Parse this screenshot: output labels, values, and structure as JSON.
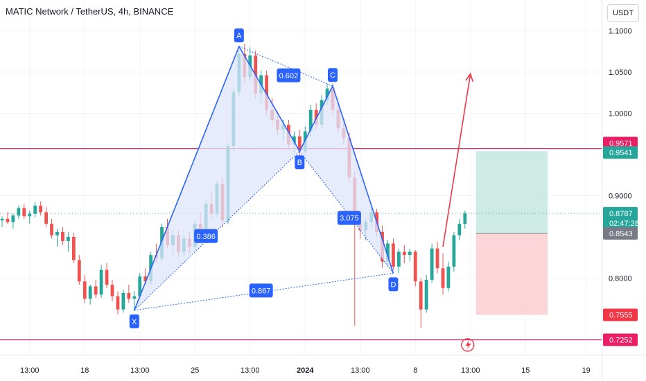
{
  "header": {
    "title": "MATIC Network / TetherUS, 4h, BINANCE",
    "unit": "USDT"
  },
  "colors": {
    "up": "#26a69a",
    "down": "#ef5350",
    "pattern": "#2962ff",
    "pattern_fill": "#dfe6fb",
    "level_line": "#e91e63",
    "current_line": "#26a69a",
    "profit_zone": "#cdebe4",
    "loss_zone": "#fbd5d7",
    "arrow": "#f23645"
  },
  "chart_data": {
    "type": "candlestick",
    "symbol": "MATIC Network / TetherUS",
    "timeframe": "4h",
    "exchange": "BINANCE",
    "ylim": [
      0.7,
      1.125
    ],
    "x_ticks": [
      {
        "i": 5,
        "label": "13:00"
      },
      {
        "i": 15,
        "label": "18"
      },
      {
        "i": 25,
        "label": "13:00"
      },
      {
        "i": 35,
        "label": "25"
      },
      {
        "i": 45,
        "label": "13:00"
      },
      {
        "i": 55,
        "label": "2024"
      },
      {
        "i": 65,
        "label": "13:00"
      },
      {
        "i": 75,
        "label": "8"
      },
      {
        "i": 85,
        "label": "13:00"
      },
      {
        "i": 95,
        "label": "15"
      },
      {
        "i": 106,
        "label": "19"
      }
    ],
    "y_ticks": [
      {
        "v": 1.1,
        "label": "1.1000"
      },
      {
        "v": 1.05,
        "label": "1.0500"
      },
      {
        "v": 1.0,
        "label": "1.0000"
      },
      {
        "v": 0.9,
        "label": "0.9000"
      },
      {
        "v": 0.8,
        "label": "0.8000"
      }
    ],
    "price_labels": [
      {
        "v": 0.9571,
        "label": "0.9571",
        "color": "#e91e63"
      },
      {
        "v": 0.9541,
        "label": "0.9541",
        "color": "#26a69a"
      },
      {
        "v": 0.8787,
        "label": "0.8787",
        "sub": "02:47:28",
        "color": "#26a69a"
      },
      {
        "v": 0.8543,
        "label": "0.8543",
        "color": "#787b86"
      },
      {
        "v": 0.7555,
        "label": "0.7555",
        "color": "#f23645"
      },
      {
        "v": 0.7252,
        "label": "0.7252",
        "color": "#e91e63"
      }
    ],
    "horizontal_lines": [
      0.9571,
      0.7252
    ],
    "current_price": 0.8787,
    "harmonic_pattern": {
      "points": [
        {
          "label": "X",
          "i": 24,
          "v": 0.761
        },
        {
          "label": "A",
          "i": 43,
          "v": 1.081
        },
        {
          "label": "B",
          "i": 54,
          "v": 0.954
        },
        {
          "label": "C",
          "i": 60,
          "v": 1.033
        },
        {
          "label": "D",
          "i": 71,
          "v": 0.806
        }
      ],
      "ratios": [
        {
          "label": "0.386",
          "i": 37,
          "v": 0.851
        },
        {
          "label": "0.602",
          "i": 52,
          "v": 1.046
        },
        {
          "label": "3.075",
          "i": 63,
          "v": 0.873
        },
        {
          "label": "0.867",
          "i": 47,
          "v": 0.785
        }
      ]
    },
    "position": {
      "entry": 0.8543,
      "target": 0.9541,
      "stop": 0.7555,
      "i_start": 86,
      "i_end": 99
    },
    "projection_arrow": {
      "from": {
        "i": 80,
        "v": 0.838
      },
      "to": {
        "i": 85,
        "v": 1.048
      }
    },
    "candles": [
      [
        0.87,
        0.875,
        0.862,
        0.872
      ],
      [
        0.872,
        0.88,
        0.866,
        0.868
      ],
      [
        0.868,
        0.878,
        0.86,
        0.876
      ],
      [
        0.876,
        0.888,
        0.872,
        0.885
      ],
      [
        0.885,
        0.89,
        0.872,
        0.875
      ],
      [
        0.875,
        0.882,
        0.866,
        0.878
      ],
      [
        0.878,
        0.892,
        0.874,
        0.888
      ],
      [
        0.888,
        0.893,
        0.876,
        0.88
      ],
      [
        0.88,
        0.886,
        0.862,
        0.866
      ],
      [
        0.866,
        0.872,
        0.848,
        0.852
      ],
      [
        0.852,
        0.86,
        0.838,
        0.856
      ],
      [
        0.856,
        0.862,
        0.84,
        0.845
      ],
      [
        0.845,
        0.856,
        0.832,
        0.85
      ],
      [
        0.85,
        0.855,
        0.818,
        0.822
      ],
      [
        0.822,
        0.828,
        0.792,
        0.796
      ],
      [
        0.796,
        0.804,
        0.77,
        0.775
      ],
      [
        0.775,
        0.792,
        0.768,
        0.79
      ],
      [
        0.79,
        0.798,
        0.776,
        0.78
      ],
      [
        0.78,
        0.816,
        0.776,
        0.81
      ],
      [
        0.81,
        0.818,
        0.788,
        0.792
      ],
      [
        0.792,
        0.798,
        0.772,
        0.778
      ],
      [
        0.778,
        0.784,
        0.756,
        0.762
      ],
      [
        0.762,
        0.786,
        0.758,
        0.782
      ],
      [
        0.782,
        0.792,
        0.77,
        0.775
      ],
      [
        0.775,
        0.784,
        0.76,
        0.778
      ],
      [
        0.778,
        0.806,
        0.774,
        0.802
      ],
      [
        0.802,
        0.812,
        0.792,
        0.796
      ],
      [
        0.796,
        0.832,
        0.792,
        0.828
      ],
      [
        0.828,
        0.842,
        0.818,
        0.824
      ],
      [
        0.824,
        0.866,
        0.82,
        0.862
      ],
      [
        0.862,
        0.872,
        0.836,
        0.84
      ],
      [
        0.84,
        0.858,
        0.826,
        0.852
      ],
      [
        0.852,
        0.858,
        0.826,
        0.832
      ],
      [
        0.832,
        0.852,
        0.826,
        0.848
      ],
      [
        0.848,
        0.856,
        0.83,
        0.838
      ],
      [
        0.838,
        0.87,
        0.834,
        0.866
      ],
      [
        0.866,
        0.88,
        0.856,
        0.86
      ],
      [
        0.86,
        0.894,
        0.856,
        0.89
      ],
      [
        0.89,
        0.904,
        0.872,
        0.878
      ],
      [
        0.878,
        0.918,
        0.874,
        0.914
      ],
      [
        0.914,
        0.922,
        0.862,
        0.87
      ],
      [
        0.87,
        0.964,
        0.866,
        0.96
      ],
      [
        0.96,
        1.032,
        0.954,
        1.026
      ],
      [
        1.026,
        1.076,
        1.02,
        1.072
      ],
      [
        1.072,
        1.084,
        1.036,
        1.044
      ],
      [
        1.044,
        1.08,
        1.038,
        1.07
      ],
      [
        1.07,
        1.076,
        1.018,
        1.024
      ],
      [
        1.024,
        1.052,
        1.012,
        1.046
      ],
      [
        1.046,
        1.052,
        0.998,
        1.004
      ],
      [
        1.004,
        1.018,
        0.986,
        0.992
      ],
      [
        0.992,
        1.002,
        0.974,
        0.98
      ],
      [
        0.98,
        0.992,
        0.966,
        0.986
      ],
      [
        0.986,
        0.992,
        0.956,
        0.962
      ],
      [
        0.962,
        0.978,
        0.952,
        0.972
      ],
      [
        0.972,
        0.98,
        0.944,
        0.954
      ],
      [
        0.954,
        0.984,
        0.95,
        0.978
      ],
      [
        0.978,
        1.01,
        0.972,
        1.004
      ],
      [
        1.004,
        1.012,
        0.98,
        0.986
      ],
      [
        0.986,
        1.022,
        0.982,
        1.016
      ],
      [
        1.016,
        1.036,
        1.01,
        1.03
      ],
      [
        1.03,
        1.036,
        0.998,
        1.004
      ],
      [
        1.004,
        1.01,
        0.976,
        0.982
      ],
      [
        0.982,
        0.994,
        0.962,
        0.97
      ],
      [
        0.97,
        0.976,
        0.916,
        0.922
      ],
      [
        0.922,
        0.93,
        0.742,
        0.866
      ],
      [
        0.866,
        0.876,
        0.848,
        0.858
      ],
      [
        0.858,
        0.872,
        0.846,
        0.868
      ],
      [
        0.868,
        0.886,
        0.862,
        0.88
      ],
      [
        0.88,
        0.884,
        0.85,
        0.856
      ],
      [
        0.856,
        0.864,
        0.812,
        0.82
      ],
      [
        0.82,
        0.846,
        0.814,
        0.842
      ],
      [
        0.842,
        0.848,
        0.81,
        0.814
      ],
      [
        0.814,
        0.836,
        0.806,
        0.832
      ],
      [
        0.832,
        0.84,
        0.818,
        0.828
      ],
      [
        0.828,
        0.836,
        0.82,
        0.832
      ],
      [
        0.832,
        0.834,
        0.79,
        0.796
      ],
      [
        0.796,
        0.8,
        0.74,
        0.762
      ],
      [
        0.762,
        0.804,
        0.758,
        0.798
      ],
      [
        0.798,
        0.842,
        0.794,
        0.836
      ],
      [
        0.836,
        0.844,
        0.806,
        0.812
      ],
      [
        0.812,
        0.83,
        0.78,
        0.788
      ],
      [
        0.788,
        0.82,
        0.784,
        0.814
      ],
      [
        0.814,
        0.856,
        0.808,
        0.852
      ],
      [
        0.852,
        0.872,
        0.846,
        0.866
      ],
      [
        0.866,
        0.882,
        0.86,
        0.8787
      ]
    ]
  }
}
